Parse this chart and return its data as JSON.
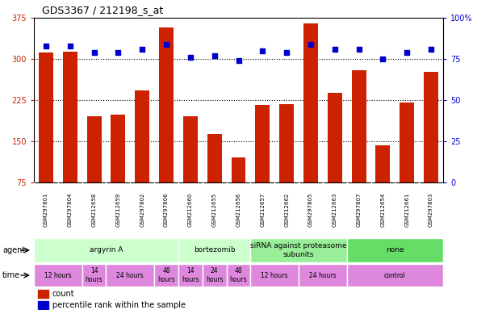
{
  "title": "GDS3367 / 212198_s_at",
  "samples": [
    "GSM297801",
    "GSM297804",
    "GSM212658",
    "GSM212659",
    "GSM297802",
    "GSM297806",
    "GSM212660",
    "GSM212655",
    "GSM212656",
    "GSM212657",
    "GSM212662",
    "GSM297805",
    "GSM212663",
    "GSM297807",
    "GSM212654",
    "GSM212661",
    "GSM297803"
  ],
  "counts": [
    312,
    313,
    196,
    198,
    242,
    358,
    196,
    163,
    120,
    216,
    217,
    365,
    238,
    280,
    142,
    220,
    276
  ],
  "percentiles": [
    83,
    83,
    79,
    79,
    81,
    84,
    76,
    77,
    74,
    80,
    79,
    84,
    81,
    81,
    75,
    79,
    81
  ],
  "ymin": 75,
  "ymax": 375,
  "yticks": [
    75,
    150,
    225,
    300,
    375
  ],
  "y2min": 0,
  "y2max": 100,
  "y2ticks": [
    0,
    25,
    50,
    75,
    100
  ],
  "bar_color": "#cc2200",
  "dot_color": "#0000cc",
  "bg_color": "#ffffff",
  "agent_groups": [
    {
      "label": "argyrin A",
      "start": 0,
      "end": 6,
      "color": "#ccffcc"
    },
    {
      "label": "bortezomib",
      "start": 6,
      "end": 9,
      "color": "#ccffcc"
    },
    {
      "label": "siRNA against proteasome\nsubunits",
      "start": 9,
      "end": 13,
      "color": "#99ee99"
    },
    {
      "label": "none",
      "start": 13,
      "end": 17,
      "color": "#66dd66"
    }
  ],
  "time_groups": [
    {
      "label": "12 hours",
      "start": 0,
      "end": 2
    },
    {
      "label": "14\nhours",
      "start": 2,
      "end": 3
    },
    {
      "label": "24 hours",
      "start": 3,
      "end": 5
    },
    {
      "label": "48\nhours",
      "start": 5,
      "end": 6
    },
    {
      "label": "14\nhours",
      "start": 6,
      "end": 7
    },
    {
      "label": "24\nhours",
      "start": 7,
      "end": 8
    },
    {
      "label": "48\nhours",
      "start": 8,
      "end": 9
    },
    {
      "label": "12 hours",
      "start": 9,
      "end": 11
    },
    {
      "label": "24 hours",
      "start": 11,
      "end": 13
    },
    {
      "label": "control",
      "start": 13,
      "end": 17
    }
  ],
  "time_color": "#dd88dd",
  "sample_bg_color": "#cccccc",
  "legend_count_color": "#cc2200",
  "legend_dot_color": "#0000cc"
}
